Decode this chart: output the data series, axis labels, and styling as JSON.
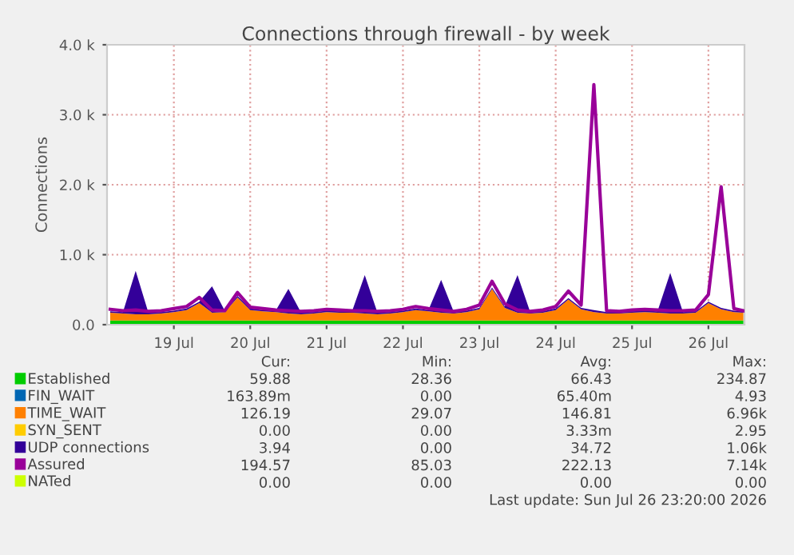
{
  "chart_data": {
    "type": "area",
    "stacked": true,
    "title": "Connections through firewall - by week",
    "ylabel": "Connections",
    "x": [
      "2026-07-18T16:00",
      "2026-07-18T20:00",
      "2026-07-19T00:00",
      "2026-07-19T04:00",
      "2026-07-19T08:00",
      "2026-07-19T12:00",
      "2026-07-19T16:00",
      "2026-07-19T20:00",
      "2026-07-20T00:00",
      "2026-07-20T04:00",
      "2026-07-20T08:00",
      "2026-07-20T12:00",
      "2026-07-20T16:00",
      "2026-07-20T20:00",
      "2026-07-21T00:00",
      "2026-07-21T04:00",
      "2026-07-21T08:00",
      "2026-07-21T12:00",
      "2026-07-21T16:00",
      "2026-07-21T20:00",
      "2026-07-22T00:00",
      "2026-07-22T04:00",
      "2026-07-22T08:00",
      "2026-07-22T12:00",
      "2026-07-22T16:00",
      "2026-07-22T20:00",
      "2026-07-23T00:00",
      "2026-07-23T04:00",
      "2026-07-23T08:00",
      "2026-07-23T12:00",
      "2026-07-23T16:00",
      "2026-07-23T20:00",
      "2026-07-24T00:00",
      "2026-07-24T04:00",
      "2026-07-24T08:00",
      "2026-07-24T12:00",
      "2026-07-24T16:00",
      "2026-07-24T20:00",
      "2026-07-25T00:00",
      "2026-07-25T04:00",
      "2026-07-25T08:00",
      "2026-07-25T12:00",
      "2026-07-25T16:00",
      "2026-07-25T20:00",
      "2026-07-26T00:00",
      "2026-07-26T04:00",
      "2026-07-26T08:00",
      "2026-07-26T12:00",
      "2026-07-26T16:00",
      "2026-07-26T20:00",
      "2026-07-26T23:00"
    ],
    "xlim": [
      "2026-07-18T15:00",
      "2026-07-26T23:20"
    ],
    "xticks": [
      {
        "value": "2026-07-19T12:00",
        "label": "19 Jul"
      },
      {
        "value": "2026-07-20T12:00",
        "label": "20 Jul"
      },
      {
        "value": "2026-07-21T12:00",
        "label": "21 Jul"
      },
      {
        "value": "2026-07-22T12:00",
        "label": "22 Jul"
      },
      {
        "value": "2026-07-23T12:00",
        "label": "23 Jul"
      },
      {
        "value": "2026-07-24T12:00",
        "label": "24 Jul"
      },
      {
        "value": "2026-07-25T12:00",
        "label": "25 Jul"
      },
      {
        "value": "2026-07-26T12:00",
        "label": "26 Jul"
      }
    ],
    "ylim": [
      0,
      4000
    ],
    "yticks": [
      {
        "value": 0,
        "label": "0.0"
      },
      {
        "value": 1000,
        "label": "1.0 k"
      },
      {
        "value": 2000,
        "label": "2.0 k"
      },
      {
        "value": 3000,
        "label": "3.0 k"
      },
      {
        "value": 4000,
        "label": "4.0 k"
      }
    ],
    "grid": true,
    "legend": "bottom",
    "series": [
      {
        "name": "Established",
        "color": "#00cc00",
        "values": [
          60,
          60,
          60,
          60,
          60,
          60,
          60,
          60,
          60,
          60,
          60,
          60,
          60,
          60,
          60,
          60,
          60,
          60,
          60,
          60,
          60,
          60,
          60,
          60,
          60,
          60,
          60,
          60,
          60,
          60,
          60,
          60,
          60,
          60,
          60,
          60,
          60,
          60,
          60,
          60,
          60,
          60,
          60,
          60,
          60,
          60,
          60,
          60,
          60,
          60,
          60
        ]
      },
      {
        "name": "FIN_WAIT",
        "color": "#0066b3",
        "values": [
          null,
          null,
          null,
          null,
          null,
          null,
          null,
          null,
          null,
          null,
          null,
          null,
          null,
          null,
          null,
          null,
          null,
          null,
          null,
          null,
          null,
          null,
          null,
          null,
          null,
          null,
          null,
          null,
          null,
          null,
          null,
          null,
          null,
          null,
          null,
          null,
          null,
          null,
          null,
          null,
          null,
          null,
          null,
          null,
          null,
          null,
          null,
          null,
          null,
          null,
          null
        ]
      },
      {
        "name": "TIME_WAIT",
        "color": "#ff8000",
        "values": [
          110,
          100,
          90,
          90,
          100,
          120,
          150,
          250,
          110,
          120,
          330,
          150,
          130,
          120,
          100,
          90,
          100,
          120,
          110,
          110,
          100,
          90,
          100,
          120,
          150,
          130,
          110,
          100,
          120,
          160,
          450,
          180,
          110,
          100,
          110,
          150,
          300,
          160,
          120,
          100,
          100,
          110,
          120,
          110,
          100,
          100,
          110,
          250,
          160,
          120,
          110
        ]
      },
      {
        "name": "SYN_SENT",
        "color": "#ffcc00",
        "values": [
          null,
          null,
          null,
          null,
          null,
          null,
          null,
          null,
          null,
          null,
          null,
          null,
          null,
          null,
          null,
          null,
          null,
          null,
          null,
          null,
          null,
          null,
          null,
          null,
          null,
          null,
          null,
          null,
          null,
          null,
          null,
          null,
          null,
          null,
          null,
          null,
          null,
          null,
          null,
          null,
          null,
          null,
          null,
          null,
          null,
          null,
          null,
          null,
          null,
          null,
          null
        ]
      },
      {
        "name": "UDP connections",
        "color": "#330099",
        "values": [
          20,
          20,
          620,
          20,
          20,
          20,
          20,
          20,
          380,
          20,
          20,
          20,
          20,
          20,
          350,
          20,
          20,
          20,
          20,
          20,
          550,
          20,
          20,
          20,
          20,
          20,
          470,
          20,
          20,
          20,
          20,
          20,
          540,
          20,
          20,
          20,
          20,
          20,
          30,
          20,
          20,
          20,
          20,
          20,
          580,
          20,
          20,
          20,
          20,
          20,
          20
        ]
      },
      {
        "name": "Assured",
        "color": "#990099",
        "type": "line",
        "values": [
          220,
          200,
          210,
          190,
          200,
          230,
          260,
          390,
          210,
          200,
          460,
          250,
          230,
          210,
          200,
          190,
          200,
          220,
          210,
          200,
          200,
          190,
          200,
          220,
          260,
          230,
          210,
          190,
          220,
          280,
          620,
          300,
          210,
          190,
          210,
          260,
          480,
          280,
          3430,
          200,
          190,
          210,
          220,
          210,
          200,
          200,
          210,
          430,
          1970,
          230,
          200
        ]
      },
      {
        "name": "NATed",
        "color": "#ccff00",
        "type": "line",
        "values": [
          null,
          null,
          null,
          null,
          null,
          null,
          null,
          null,
          null,
          null,
          null,
          null,
          null,
          null,
          null,
          null,
          null,
          null,
          null,
          null,
          null,
          null,
          null,
          null,
          null,
          null,
          null,
          null,
          null,
          null,
          null,
          null,
          null,
          null,
          null,
          null,
          null,
          null,
          null,
          null,
          null,
          null,
          null,
          null,
          null,
          null,
          null,
          null,
          null,
          null,
          null
        ]
      }
    ],
    "annotations": [
      "Cur:",
      "Min:",
      "Avg:",
      "Max:",
      "59.88",
      "28.36",
      "66.43",
      "234.87",
      "163.89m",
      "0.00",
      "65.40m",
      "4.93",
      "126.19",
      "29.07",
      "146.81",
      "6.96k",
      "0.00",
      "0.00",
      "3.33m",
      "2.95",
      "3.94",
      "0.00",
      "34.72",
      "1.06k",
      "194.57",
      "85.03",
      "222.13",
      "7.14k",
      "0.00",
      "0.00",
      "0.00",
      "0.00",
      "Last update: Sun Jul 26 23:20:00 2026"
    ]
  }
}
